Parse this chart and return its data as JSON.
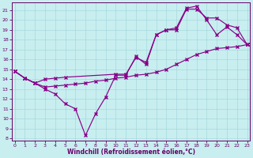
{
  "xlabel": "Windchill (Refroidissement éolien,°C)",
  "bg_color": "#c8eef0",
  "line_color": "#880088",
  "grid_color": "#9ed4d8",
  "axis_color": "#660066",
  "xlim": [
    -0.3,
    23.3
  ],
  "ylim": [
    7.8,
    21.8
  ],
  "yticks": [
    8,
    9,
    10,
    11,
    12,
    13,
    14,
    15,
    16,
    17,
    18,
    19,
    20,
    21
  ],
  "xticks": [
    0,
    1,
    2,
    3,
    4,
    5,
    6,
    7,
    8,
    9,
    10,
    11,
    12,
    13,
    14,
    15,
    16,
    17,
    18,
    19,
    20,
    21,
    22,
    23
  ],
  "curve1_x": [
    0,
    1,
    2,
    3,
    4,
    5,
    6,
    7,
    8,
    9,
    10,
    11,
    12,
    13,
    14,
    15,
    16,
    17,
    18,
    19,
    20,
    21,
    22,
    23
  ],
  "curve1_y": [
    14.8,
    14.1,
    13.6,
    13.0,
    12.5,
    11.5,
    11.0,
    8.3,
    10.5,
    12.2,
    14.4,
    14.4,
    16.3,
    15.5,
    18.5,
    19.0,
    19.2,
    21.2,
    21.4,
    20.0,
    18.5,
    19.3,
    18.5,
    17.5
  ],
  "curve2_x": [
    0,
    1,
    2,
    3,
    4,
    5,
    10,
    11,
    12,
    13,
    14,
    15,
    16,
    17,
    18,
    19,
    20,
    21,
    22,
    23
  ],
  "curve2_y": [
    14.8,
    14.1,
    13.6,
    14.0,
    14.1,
    14.2,
    14.5,
    14.5,
    16.2,
    15.7,
    18.5,
    19.0,
    19.0,
    21.1,
    21.1,
    20.2,
    20.2,
    19.5,
    19.2,
    17.5
  ],
  "curve3_x": [
    0,
    1,
    2,
    3,
    4,
    5,
    6,
    7,
    8,
    9,
    10,
    11,
    12,
    13,
    14,
    15,
    16,
    17,
    18,
    19,
    20,
    21,
    22,
    23
  ],
  "curve3_y": [
    14.8,
    14.1,
    13.6,
    13.2,
    13.3,
    13.4,
    13.5,
    13.6,
    13.8,
    13.9,
    14.1,
    14.2,
    14.4,
    14.5,
    14.7,
    15.0,
    15.5,
    16.0,
    16.5,
    16.8,
    17.1,
    17.2,
    17.3,
    17.5
  ]
}
